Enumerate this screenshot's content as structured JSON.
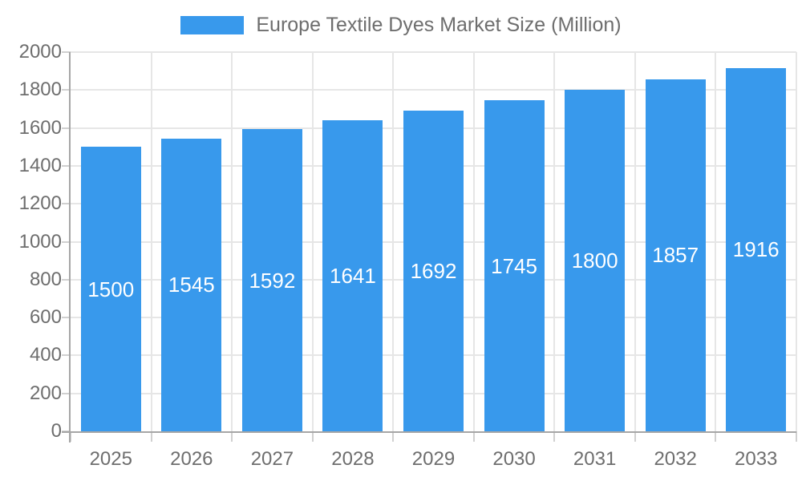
{
  "chart_data": {
    "type": "bar",
    "title": "Europe Textile Dyes Market Size (Million)",
    "categories": [
      "2025",
      "2026",
      "2027",
      "2028",
      "2029",
      "2030",
      "2031",
      "2032",
      "2033"
    ],
    "values": [
      1500,
      1545,
      1592,
      1641,
      1692,
      1745,
      1800,
      1857,
      1916
    ],
    "series": [
      {
        "name": "Europe Textile Dyes Market Size (Million)",
        "values": [
          1500,
          1545,
          1592,
          1641,
          1692,
          1745,
          1800,
          1857,
          1916
        ]
      }
    ],
    "y_ticks": [
      "0",
      "200",
      "400",
      "600",
      "800",
      "1000",
      "1200",
      "1400",
      "1600",
      "1800",
      "2000"
    ],
    "ylim": [
      0,
      2000
    ],
    "xlabel": "",
    "ylabel": "",
    "grid": true,
    "legend_position": "top",
    "bar_labels_inside": true
  },
  "colors": {
    "bar": "#3899EC",
    "bar_label": "#FFFFFF",
    "grid": "#E6E6E6",
    "axis": "#A6A6A6",
    "tick": "#D0D0D0",
    "text": "#6E6E6E"
  }
}
